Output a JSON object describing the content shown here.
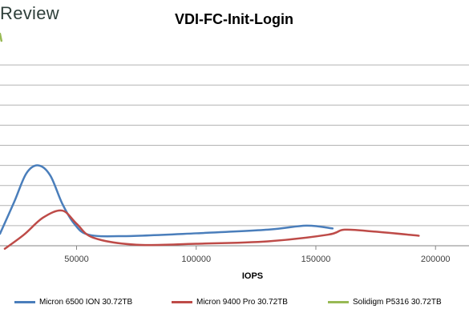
{
  "watermark": "Review",
  "chart_data": {
    "type": "line",
    "title": "VDI-FC-Init-Login",
    "xlabel": "IOPS",
    "ylabel": "",
    "x_ticks": [
      50000,
      100000,
      150000,
      200000
    ],
    "x_tick_labels": [
      "50000",
      "100000",
      "150000",
      "200000"
    ],
    "xlim": [
      18000,
      214000
    ],
    "ylim": [
      0,
      10
    ],
    "grid": true,
    "legend_position": "bottom",
    "series": [
      {
        "name": "Micron 6500 ION 30.72TB",
        "color": "#4a7ebb",
        "points": [
          [
            18000,
            0.6
          ],
          [
            24000,
            2.2
          ],
          [
            29000,
            3.6
          ],
          [
            34000,
            4.0
          ],
          [
            39000,
            3.5
          ],
          [
            44000,
            2.1
          ],
          [
            49000,
            1.1
          ],
          [
            55000,
            0.55
          ],
          [
            70000,
            0.48
          ],
          [
            100000,
            0.62
          ],
          [
            130000,
            0.8
          ],
          [
            146000,
            1.0
          ],
          [
            157000,
            0.86
          ]
        ]
      },
      {
        "name": "Micron 9400 Pro 30.72TB",
        "color": "#be4b48",
        "points": [
          [
            20000,
            -0.15
          ],
          [
            28000,
            0.55
          ],
          [
            36000,
            1.4
          ],
          [
            44000,
            1.75
          ],
          [
            50000,
            1.1
          ],
          [
            57000,
            0.4
          ],
          [
            75000,
            0.05
          ],
          [
            100000,
            0.1
          ],
          [
            130000,
            0.22
          ],
          [
            155000,
            0.55
          ],
          [
            162000,
            0.8
          ],
          [
            175000,
            0.7
          ],
          [
            193000,
            0.5
          ]
        ]
      },
      {
        "name": "Solidigm P5316 30.72TB",
        "color": "#98b954",
        "points": [
          [
            18000,
            10.55
          ],
          [
            18600,
            10.2
          ]
        ]
      }
    ]
  }
}
